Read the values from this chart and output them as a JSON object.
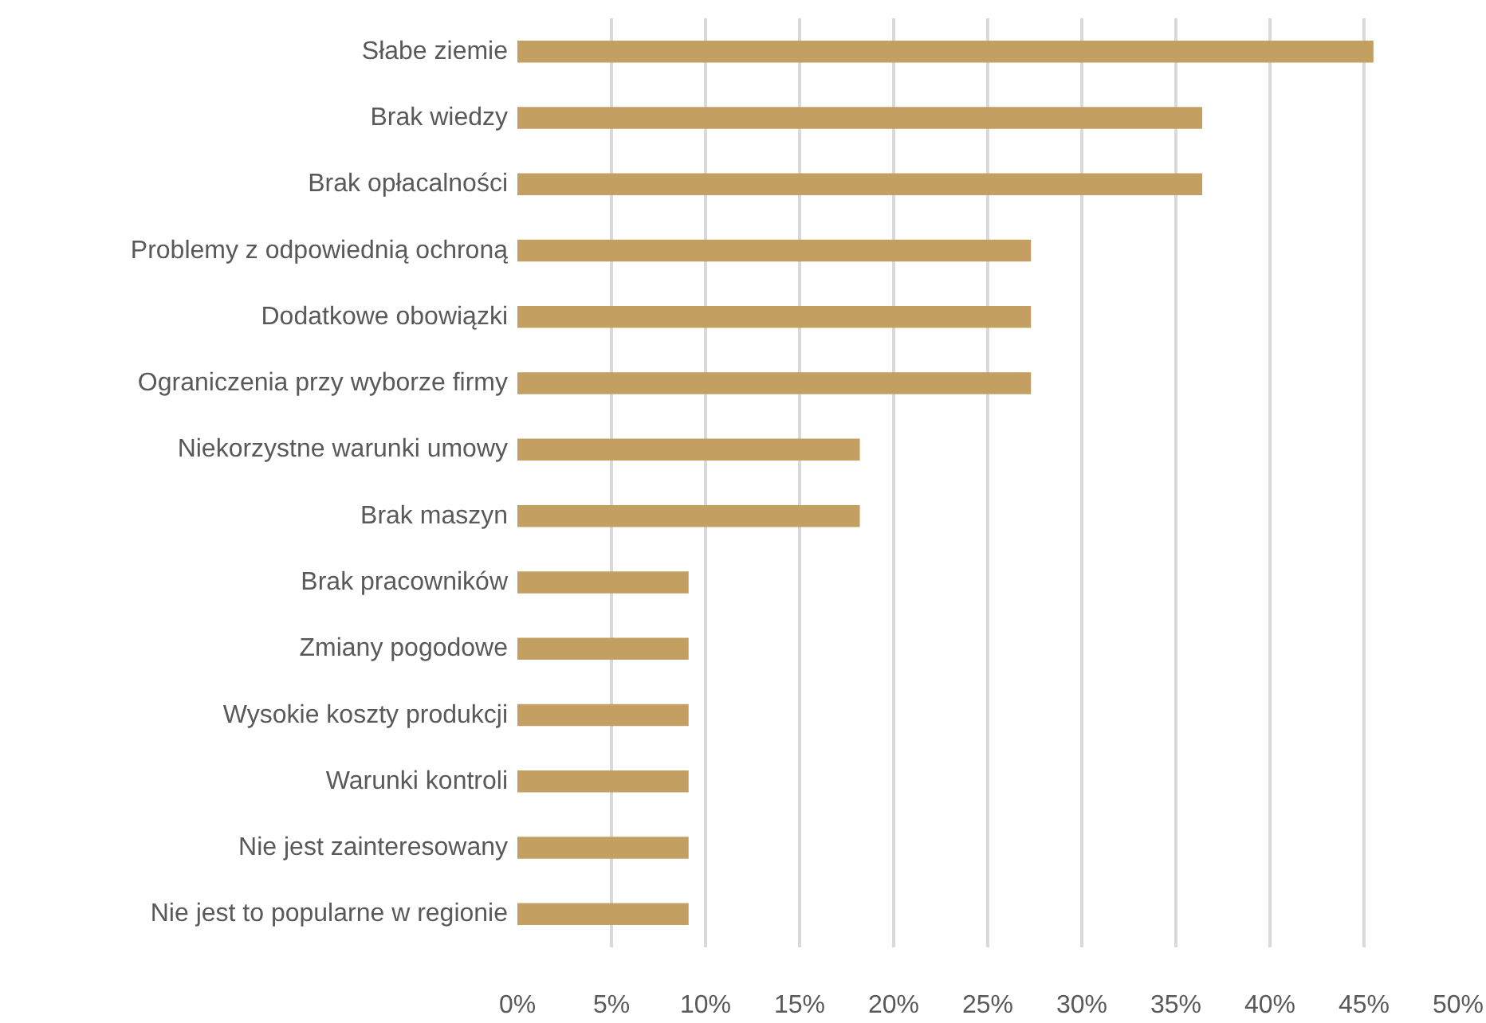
{
  "chart_data": {
    "type": "bar",
    "orientation": "horizontal",
    "color": "#c49f62",
    "categories": [
      "Słabe ziemie",
      "Brak wiedzy",
      "Brak opłacalności",
      "Problemy z odpowiednią ochroną",
      "Dodatkowe obowiązki",
      "Ograniczenia przy wyborze firmy",
      "Niekorzystne warunki umowy",
      "Brak maszyn",
      "Brak pracowników",
      "Zmiany pogodowe",
      "Wysokie koszty produkcji",
      "Warunki kontroli",
      "Nie jest zainteresowany",
      "Nie jest to popularne w regionie"
    ],
    "values": [
      45.5,
      36.4,
      36.4,
      27.3,
      27.3,
      27.3,
      18.2,
      18.2,
      9.1,
      9.1,
      9.1,
      9.1,
      9.1,
      9.1
    ],
    "xlim": [
      0,
      50
    ],
    "xticks": [
      {
        "value": 0,
        "label": "0%"
      },
      {
        "value": 5,
        "label": "5%"
      },
      {
        "value": 10,
        "label": "10%"
      },
      {
        "value": 15,
        "label": "15%"
      },
      {
        "value": 20,
        "label": "20%"
      },
      {
        "value": 25,
        "label": "25%"
      },
      {
        "value": 30,
        "label": "30%"
      },
      {
        "value": 35,
        "label": "35%"
      },
      {
        "value": 40,
        "label": "40%"
      },
      {
        "value": 45,
        "label": "45%"
      },
      {
        "value": 50,
        "label": "50%"
      }
    ],
    "grid": "x"
  }
}
